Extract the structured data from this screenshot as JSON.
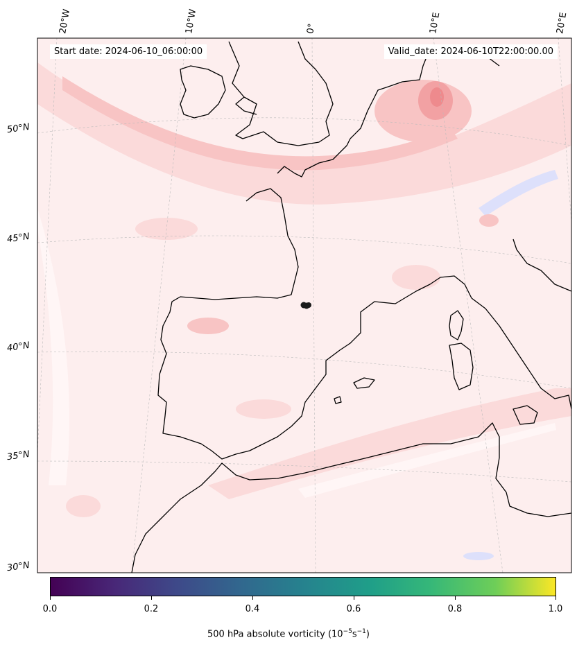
{
  "header": {
    "start_text": "Start date: 2024-06-10_06:00:00",
    "valid_text": "Valid_date: 2024-06-10T22:00:00.00"
  },
  "gridlines": {
    "longitudes": [
      "20°W",
      "10°W",
      "0°",
      "10°E",
      "20°E"
    ],
    "latitudes": [
      "50°N",
      "45°N",
      "40°N",
      "35°N",
      "30°N"
    ]
  },
  "colorbar": {
    "colormap": "viridis",
    "ticks": [
      "0.0",
      "0.2",
      "0.4",
      "0.6",
      "0.8",
      "1.0"
    ],
    "label_prefix": "500 hPa absolute vorticity (10",
    "label_exp1": "−5",
    "label_mid": "s",
    "label_exp2": "−1",
    "label_suffix": ")"
  },
  "field_colors": {
    "background": "#fdeeee",
    "light": "#fbdada",
    "medium": "#f8c4c4",
    "strong": "#f2a1a3",
    "max": "#ee8a8d",
    "negative": "#dde0fb",
    "coast": "#000000",
    "marker": "#1a1a1a"
  }
}
